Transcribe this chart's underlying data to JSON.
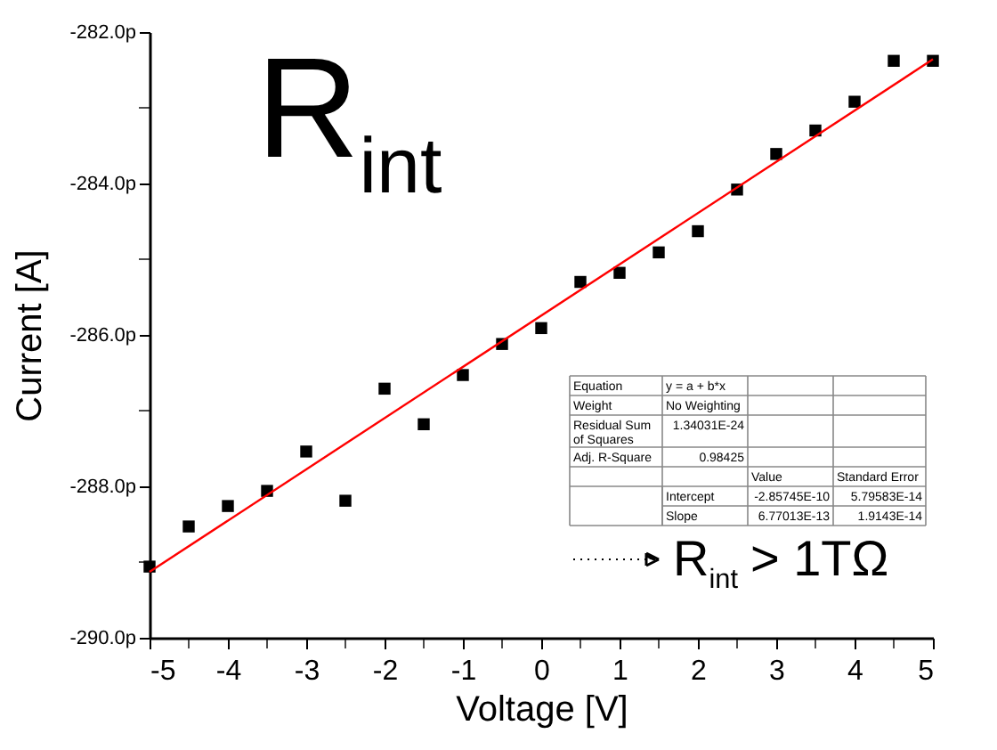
{
  "chart_data": {
    "type": "scatter",
    "xlabel": "Voltage [V]",
    "ylabel": "Current [A]",
    "x": [
      -5,
      -4.5,
      -4,
      -3.5,
      -3,
      -2.5,
      -2,
      -1.5,
      -1,
      -0.5,
      0,
      0.5,
      1,
      1.5,
      2,
      2.5,
      3,
      3.5,
      4,
      4.5,
      5
    ],
    "series": [
      {
        "color": "#000000",
        "marker": "square",
        "values": [
          -289.06,
          -288.53,
          -288.26,
          -288.06,
          -287.54,
          -288.19,
          -286.71,
          -287.18,
          -286.53,
          -286.12,
          -285.91,
          -285.3,
          -285.18,
          -284.91,
          -284.63,
          -284.08,
          -283.61,
          -283.3,
          -282.92,
          -282.38,
          -282.38
        ]
      },
      {
        "type": "line",
        "color": "#ff0000",
        "marker": "none",
        "line_style": "solid",
        "x": [
          -5,
          5
        ],
        "values": [
          -289.13,
          -282.36
        ]
      }
    ],
    "xlim": [
      -5,
      5
    ],
    "xticks": [
      -5,
      {
        "value": -4.5,
        "label": null
      },
      -4,
      {
        "value": -3.5,
        "label": null
      },
      -3,
      {
        "value": -2.5,
        "label": null
      },
      -2,
      {
        "value": -1.5,
        "label": null
      },
      -1,
      {
        "value": -0.5,
        "label": null
      },
      0,
      {
        "value": 0.5,
        "label": null
      },
      1,
      {
        "value": 1.5,
        "label": null
      },
      2,
      {
        "value": 2.5,
        "label": null
      },
      3,
      {
        "value": 3.5,
        "label": null
      },
      4,
      {
        "value": 4.5,
        "label": null
      },
      5
    ],
    "ylim": [
      -290,
      -282
    ],
    "yticks": [
      {
        "value": -290,
        "label": "-290.0p"
      },
      {
        "value": -289,
        "label": null
      },
      {
        "value": -288,
        "label": "-288.0p"
      },
      {
        "value": -287,
        "label": null
      },
      {
        "value": -286,
        "label": "-286.0p"
      },
      {
        "value": -285,
        "label": null
      },
      {
        "value": -284,
        "label": "-284.0p"
      },
      {
        "value": -283,
        "label": null
      },
      {
        "value": -282,
        "label": "-282.0p"
      }
    ],
    "grid": false,
    "legend": false,
    "annotations": [
      "R$_{int}$",
      "R$_{int}$ > 1TΩ",
      "Equation",
      "y = a + b*x",
      "Weight",
      "No Weighting",
      "Residual Sum of Squares",
      "1.34031E-24",
      "Adj. R-Square",
      "0.98425",
      "Value",
      "Standard Error",
      "Intercept",
      "-2.85745E-10",
      "5.79583E-14",
      "Slope",
      "6.77013E-13",
      "1.9143E-14"
    ]
  }
}
